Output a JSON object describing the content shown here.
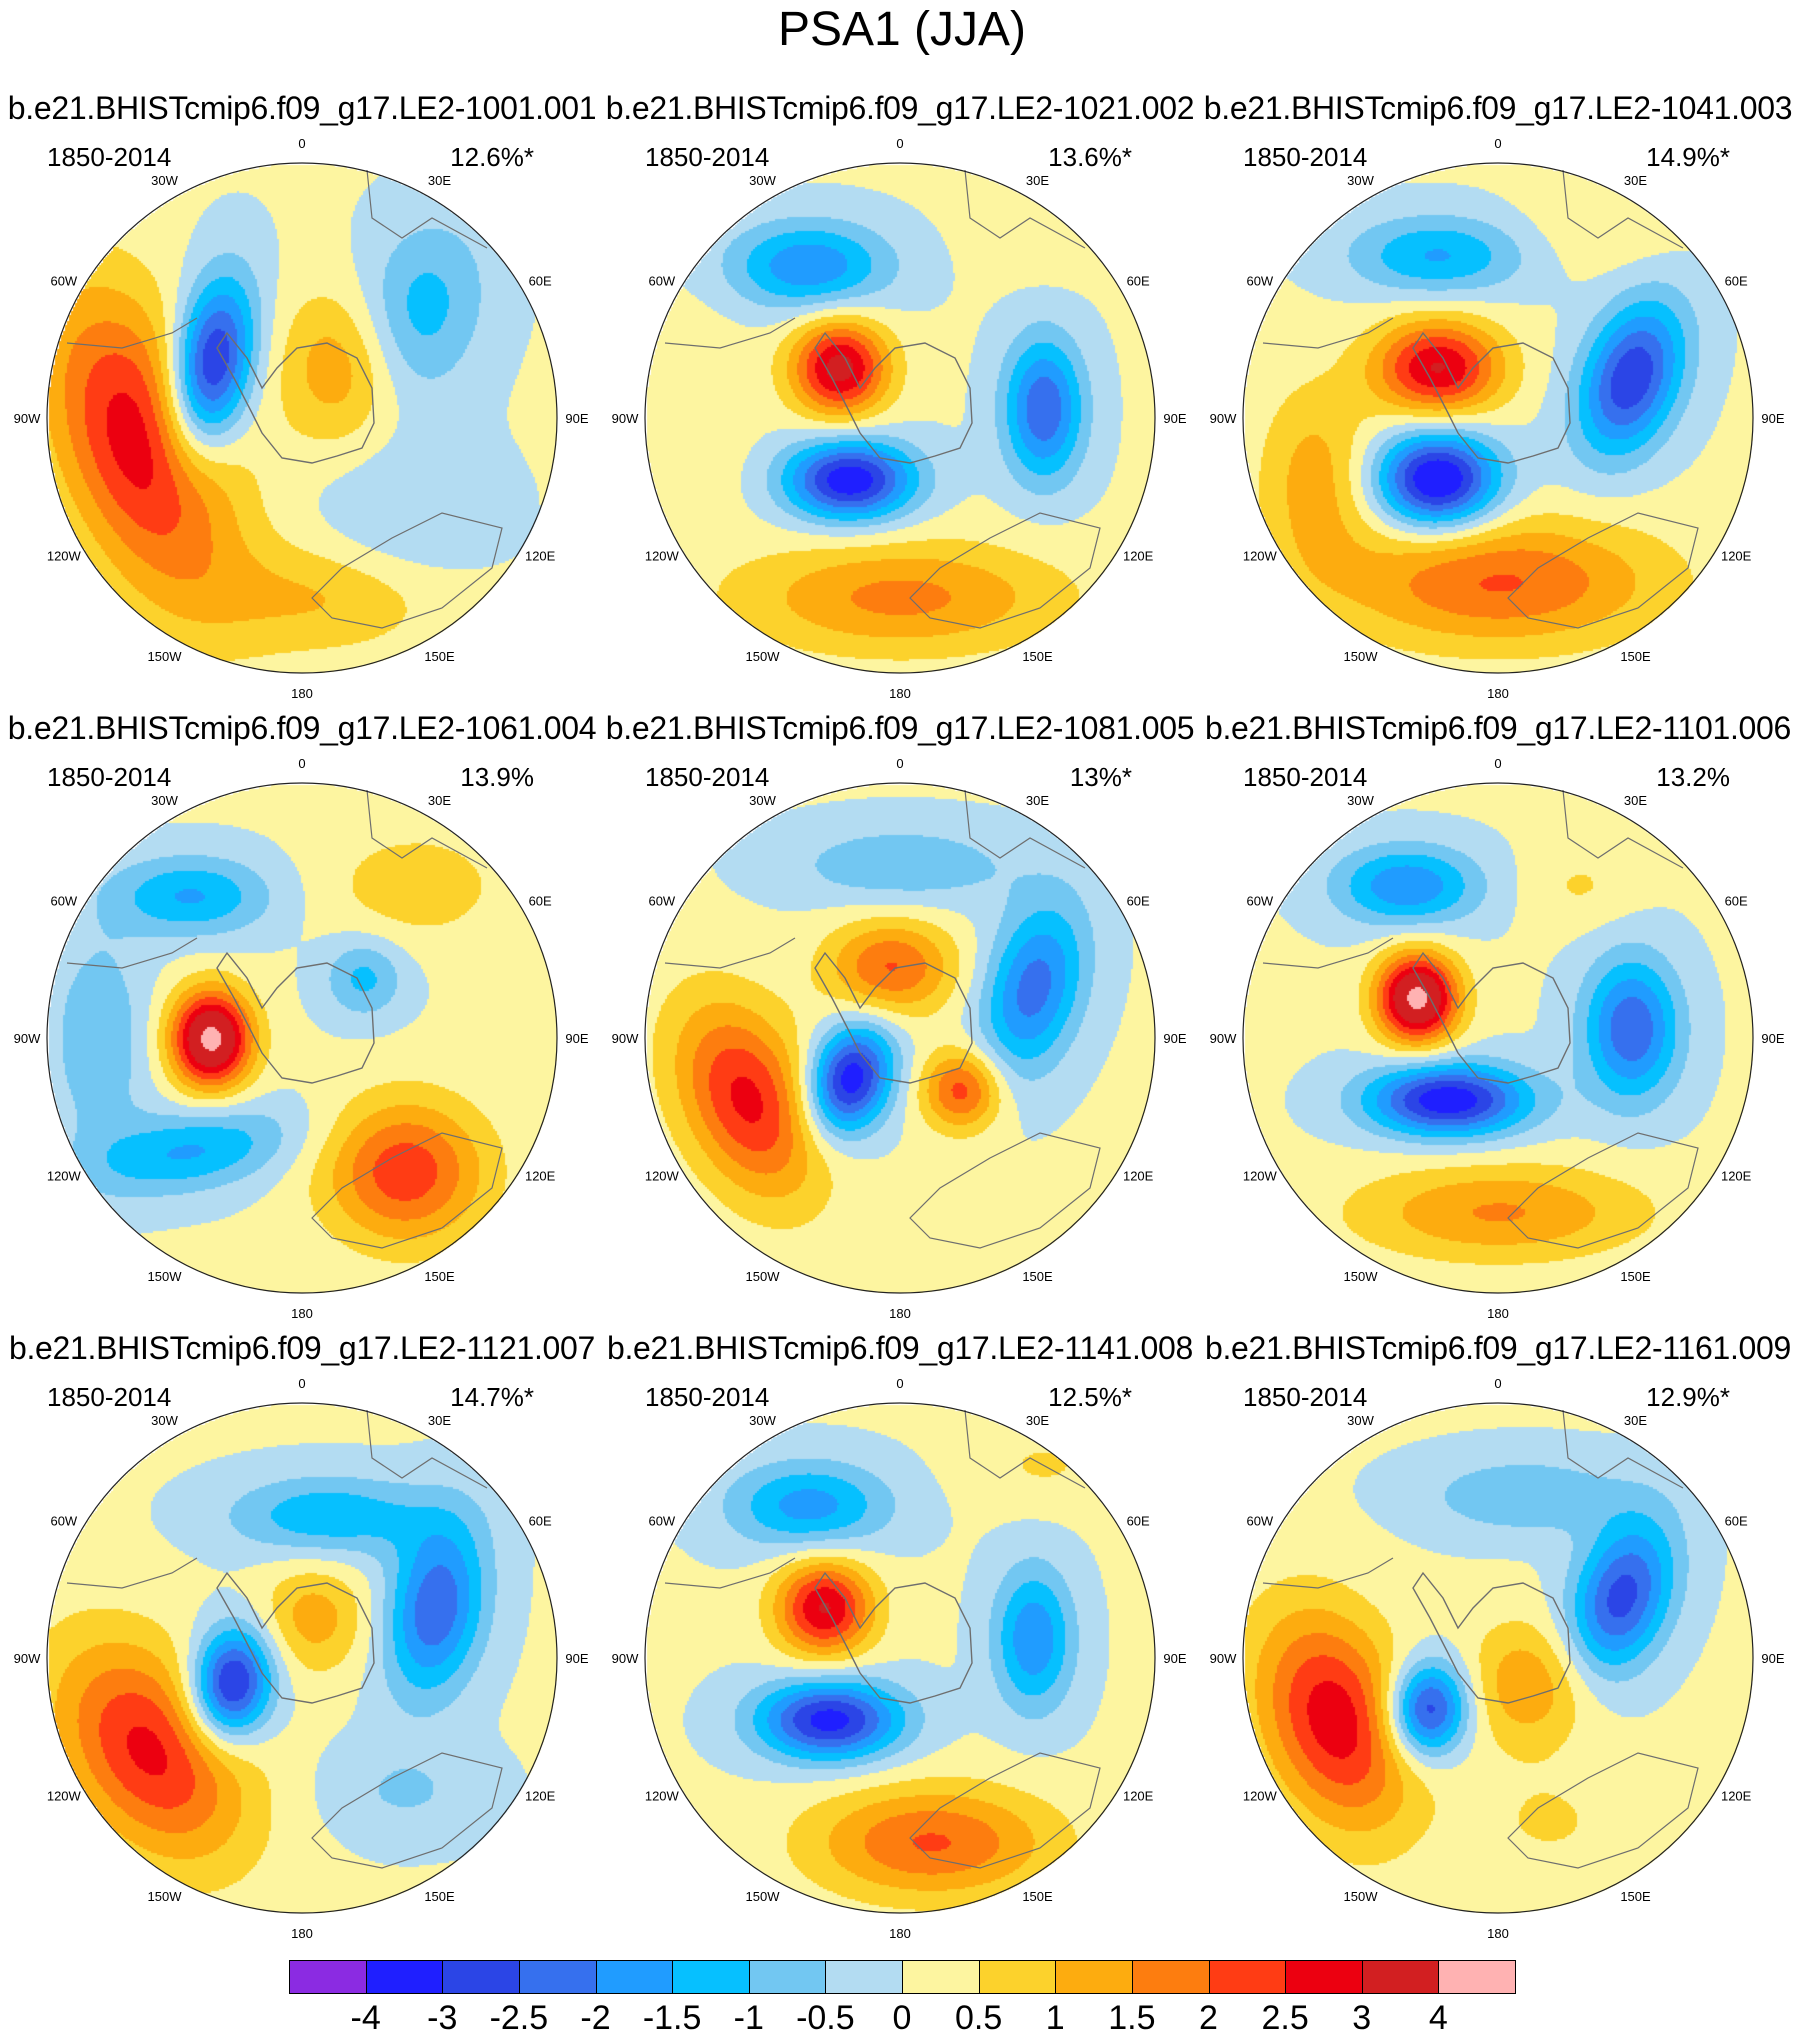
{
  "title": "PSA1 (JJA)",
  "panels": [
    {
      "title": "b.e21.BHISTcmip6.f09_g17.LE2-1001.001",
      "period": "1850-2014",
      "variance": "12.6%*",
      "blobs": [
        [
          0.18,
          0.55,
          0.2,
          0.4,
          2.8,
          -20
        ],
        [
          0.32,
          0.4,
          0.1,
          0.22,
          -3.5,
          10
        ],
        [
          0.58,
          0.4,
          0.16,
          0.2,
          1.5,
          0
        ],
        [
          0.72,
          0.3,
          0.16,
          0.24,
          -1.4,
          20
        ],
        [
          0.55,
          0.85,
          0.3,
          0.14,
          1.0,
          0
        ],
        [
          0.7,
          0.7,
          0.22,
          0.2,
          -0.6,
          0
        ]
      ]
    },
    {
      "title": "b.e21.BHISTcmip6.f09_g17.LE2-1021.002",
      "period": "1850-2014",
      "variance": "13.6%*",
      "blobs": [
        [
          0.32,
          0.2,
          0.2,
          0.11,
          -2.0,
          0
        ],
        [
          0.38,
          0.4,
          0.12,
          0.12,
          3.2,
          0
        ],
        [
          0.4,
          0.62,
          0.16,
          0.1,
          -3.5,
          0
        ],
        [
          0.78,
          0.48,
          0.1,
          0.18,
          -2.5,
          0
        ],
        [
          0.5,
          0.85,
          0.4,
          0.14,
          1.6,
          0
        ],
        [
          0.1,
          0.5,
          0.14,
          0.3,
          0.3,
          0
        ],
        [
          0.78,
          0.12,
          0.16,
          0.12,
          0.4,
          0
        ]
      ]
    },
    {
      "title": "b.e21.BHISTcmip6.f09_g17.LE2-1041.003",
      "period": "1850-2014",
      "variance": "14.9%*",
      "blobs": [
        [
          0.38,
          0.18,
          0.22,
          0.1,
          -1.6,
          0
        ],
        [
          0.38,
          0.4,
          0.16,
          0.12,
          3.0,
          0
        ],
        [
          0.38,
          0.62,
          0.15,
          0.12,
          -3.8,
          0
        ],
        [
          0.76,
          0.42,
          0.12,
          0.2,
          -3.0,
          20
        ],
        [
          0.5,
          0.82,
          0.4,
          0.16,
          2.0,
          0
        ],
        [
          0.14,
          0.62,
          0.14,
          0.24,
          1.2,
          0
        ],
        [
          0.7,
          0.12,
          0.2,
          0.12,
          0.4,
          0
        ]
      ]
    },
    {
      "title": "b.e21.BHISTcmip6.f09_g17.LE2-1061.004",
      "period": "1850-2014",
      "variance": "13.9%",
      "blobs": [
        [
          0.32,
          0.5,
          0.1,
          0.12,
          4.2,
          0
        ],
        [
          0.28,
          0.22,
          0.2,
          0.1,
          -1.6,
          0
        ],
        [
          0.28,
          0.72,
          0.26,
          0.1,
          -1.6,
          -10
        ],
        [
          0.7,
          0.76,
          0.2,
          0.18,
          2.3,
          0
        ],
        [
          0.62,
          0.38,
          0.1,
          0.1,
          -1.2,
          0
        ],
        [
          0.72,
          0.2,
          0.22,
          0.14,
          0.8,
          0
        ],
        [
          0.1,
          0.5,
          0.12,
          0.26,
          -1.0,
          0
        ]
      ]
    },
    {
      "title": "b.e21.BHISTcmip6.f09_g17.LE2-1081.005",
      "period": "1850-2014",
      "variance": "13%*",
      "blobs": [
        [
          0.2,
          0.62,
          0.16,
          0.26,
          2.6,
          -25
        ],
        [
          0.4,
          0.58,
          0.1,
          0.14,
          -3.5,
          20
        ],
        [
          0.48,
          0.36,
          0.16,
          0.12,
          2.0,
          0
        ],
        [
          0.62,
          0.6,
          0.1,
          0.1,
          2.2,
          0
        ],
        [
          0.76,
          0.4,
          0.12,
          0.22,
          -2.3,
          15
        ],
        [
          0.5,
          0.16,
          0.28,
          0.1,
          -1.0,
          0
        ]
      ]
    },
    {
      "title": "b.e21.BHISTcmip6.f09_g17.LE2-1101.006",
      "period": "1850-2014",
      "variance": "13.2%",
      "blobs": [
        [
          0.32,
          0.2,
          0.18,
          0.1,
          -2.0,
          0
        ],
        [
          0.34,
          0.42,
          0.1,
          0.11,
          4.2,
          0
        ],
        [
          0.4,
          0.62,
          0.2,
          0.09,
          -3.5,
          0
        ],
        [
          0.76,
          0.48,
          0.12,
          0.18,
          -2.5,
          0
        ],
        [
          0.5,
          0.84,
          0.36,
          0.12,
          1.5,
          0
        ],
        [
          0.66,
          0.2,
          0.14,
          0.1,
          0.5,
          0
        ]
      ]
    },
    {
      "title": "b.e21.BHISTcmip6.f09_g17.LE2-1121.007",
      "period": "1850-2014",
      "variance": "14.7%*",
      "blobs": [
        [
          0.2,
          0.68,
          0.2,
          0.3,
          2.6,
          -35
        ],
        [
          0.36,
          0.55,
          0.1,
          0.14,
          -3.5,
          10
        ],
        [
          0.52,
          0.42,
          0.14,
          0.14,
          1.2,
          0
        ],
        [
          0.76,
          0.4,
          0.12,
          0.22,
          -2.5,
          10
        ],
        [
          0.55,
          0.22,
          0.25,
          0.1,
          -1.5,
          0
        ],
        [
          0.7,
          0.76,
          0.2,
          0.12,
          -0.6,
          0
        ]
      ]
    },
    {
      "title": "b.e21.BHISTcmip6.f09_g17.LE2-1141.008",
      "period": "1850-2014",
      "variance": "12.5%*",
      "blobs": [
        [
          0.32,
          0.2,
          0.2,
          0.11,
          -1.8,
          0
        ],
        [
          0.35,
          0.4,
          0.12,
          0.12,
          3.0,
          0
        ],
        [
          0.36,
          0.62,
          0.18,
          0.1,
          -3.3,
          0
        ],
        [
          0.76,
          0.46,
          0.1,
          0.18,
          -2.0,
          0
        ],
        [
          0.56,
          0.86,
          0.3,
          0.14,
          2.0,
          0
        ],
        [
          0.78,
          0.12,
          0.18,
          0.1,
          0.5,
          0
        ]
      ]
    },
    {
      "title": "b.e21.BHISTcmip6.f09_g17.LE2-1161.009",
      "period": "1850-2014",
      "variance": "12.9%*",
      "blobs": [
        [
          0.18,
          0.62,
          0.18,
          0.28,
          2.8,
          -20
        ],
        [
          0.36,
          0.6,
          0.1,
          0.12,
          -3.2,
          10
        ],
        [
          0.56,
          0.55,
          0.16,
          0.16,
          1.4,
          0
        ],
        [
          0.74,
          0.38,
          0.12,
          0.2,
          -2.8,
          20
        ],
        [
          0.55,
          0.18,
          0.26,
          0.1,
          -1.0,
          0
        ],
        [
          0.6,
          0.82,
          0.2,
          0.14,
          0.5,
          0
        ]
      ]
    }
  ],
  "lon_labels": [
    "0",
    "30E",
    "60E",
    "90E",
    "120E",
    "150E",
    "180",
    "150W",
    "120W",
    "90W",
    "60W",
    "30W"
  ],
  "colorbar": {
    "labels": [
      "-4",
      "-3",
      "-2.5",
      "-2",
      "-1.5",
      "-1",
      "-0.5",
      "0",
      "0.5",
      "1",
      "1.5",
      "2",
      "2.5",
      "3",
      "4"
    ],
    "colors": [
      "#8b2be2",
      "#1f1fff",
      "#2b45e6",
      "#3670ee",
      "#209cff",
      "#06c0ff",
      "#72c7f2",
      "#b3dcf2",
      "#fdf5a0",
      "#fcd22c",
      "#fdac0f",
      "#fd7d0f",
      "#ff3c14",
      "#ec0010",
      "#d21f21",
      "#ffb2b2"
    ]
  }
}
